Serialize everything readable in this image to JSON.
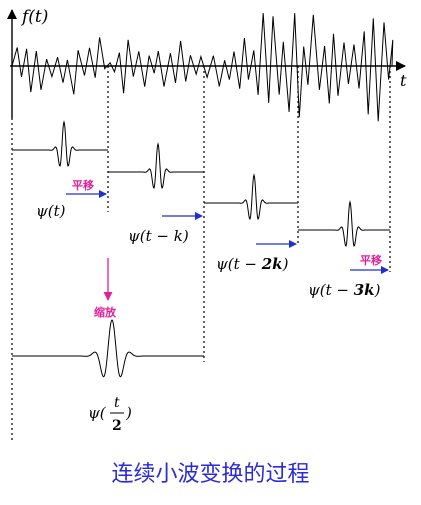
{
  "signal": {
    "fn_label": "f(t)",
    "axis_label": "t"
  },
  "wavelets": {
    "w0": "ψ(t)",
    "w1": "ψ(t − k)",
    "w2_pre": "ψ(t − ",
    "w2_bold": "2k",
    "w2_post": ")",
    "w3_pre": "ψ(t − ",
    "w3_bold": "3k",
    "w3_post": ")",
    "scaled_pre": "ψ(",
    "scaled_num": "t",
    "scaled_den": "2",
    "scaled_post": ")"
  },
  "annotations": {
    "shift_label": "平移",
    "scale_label": "缩放"
  },
  "caption": "连续小波变换的过程",
  "colors": {
    "shift_arrow": "#1f2fd0",
    "scale_arrow": "#e0209a",
    "annotation_text": "#e0209a",
    "caption": "#2a2ad8"
  }
}
